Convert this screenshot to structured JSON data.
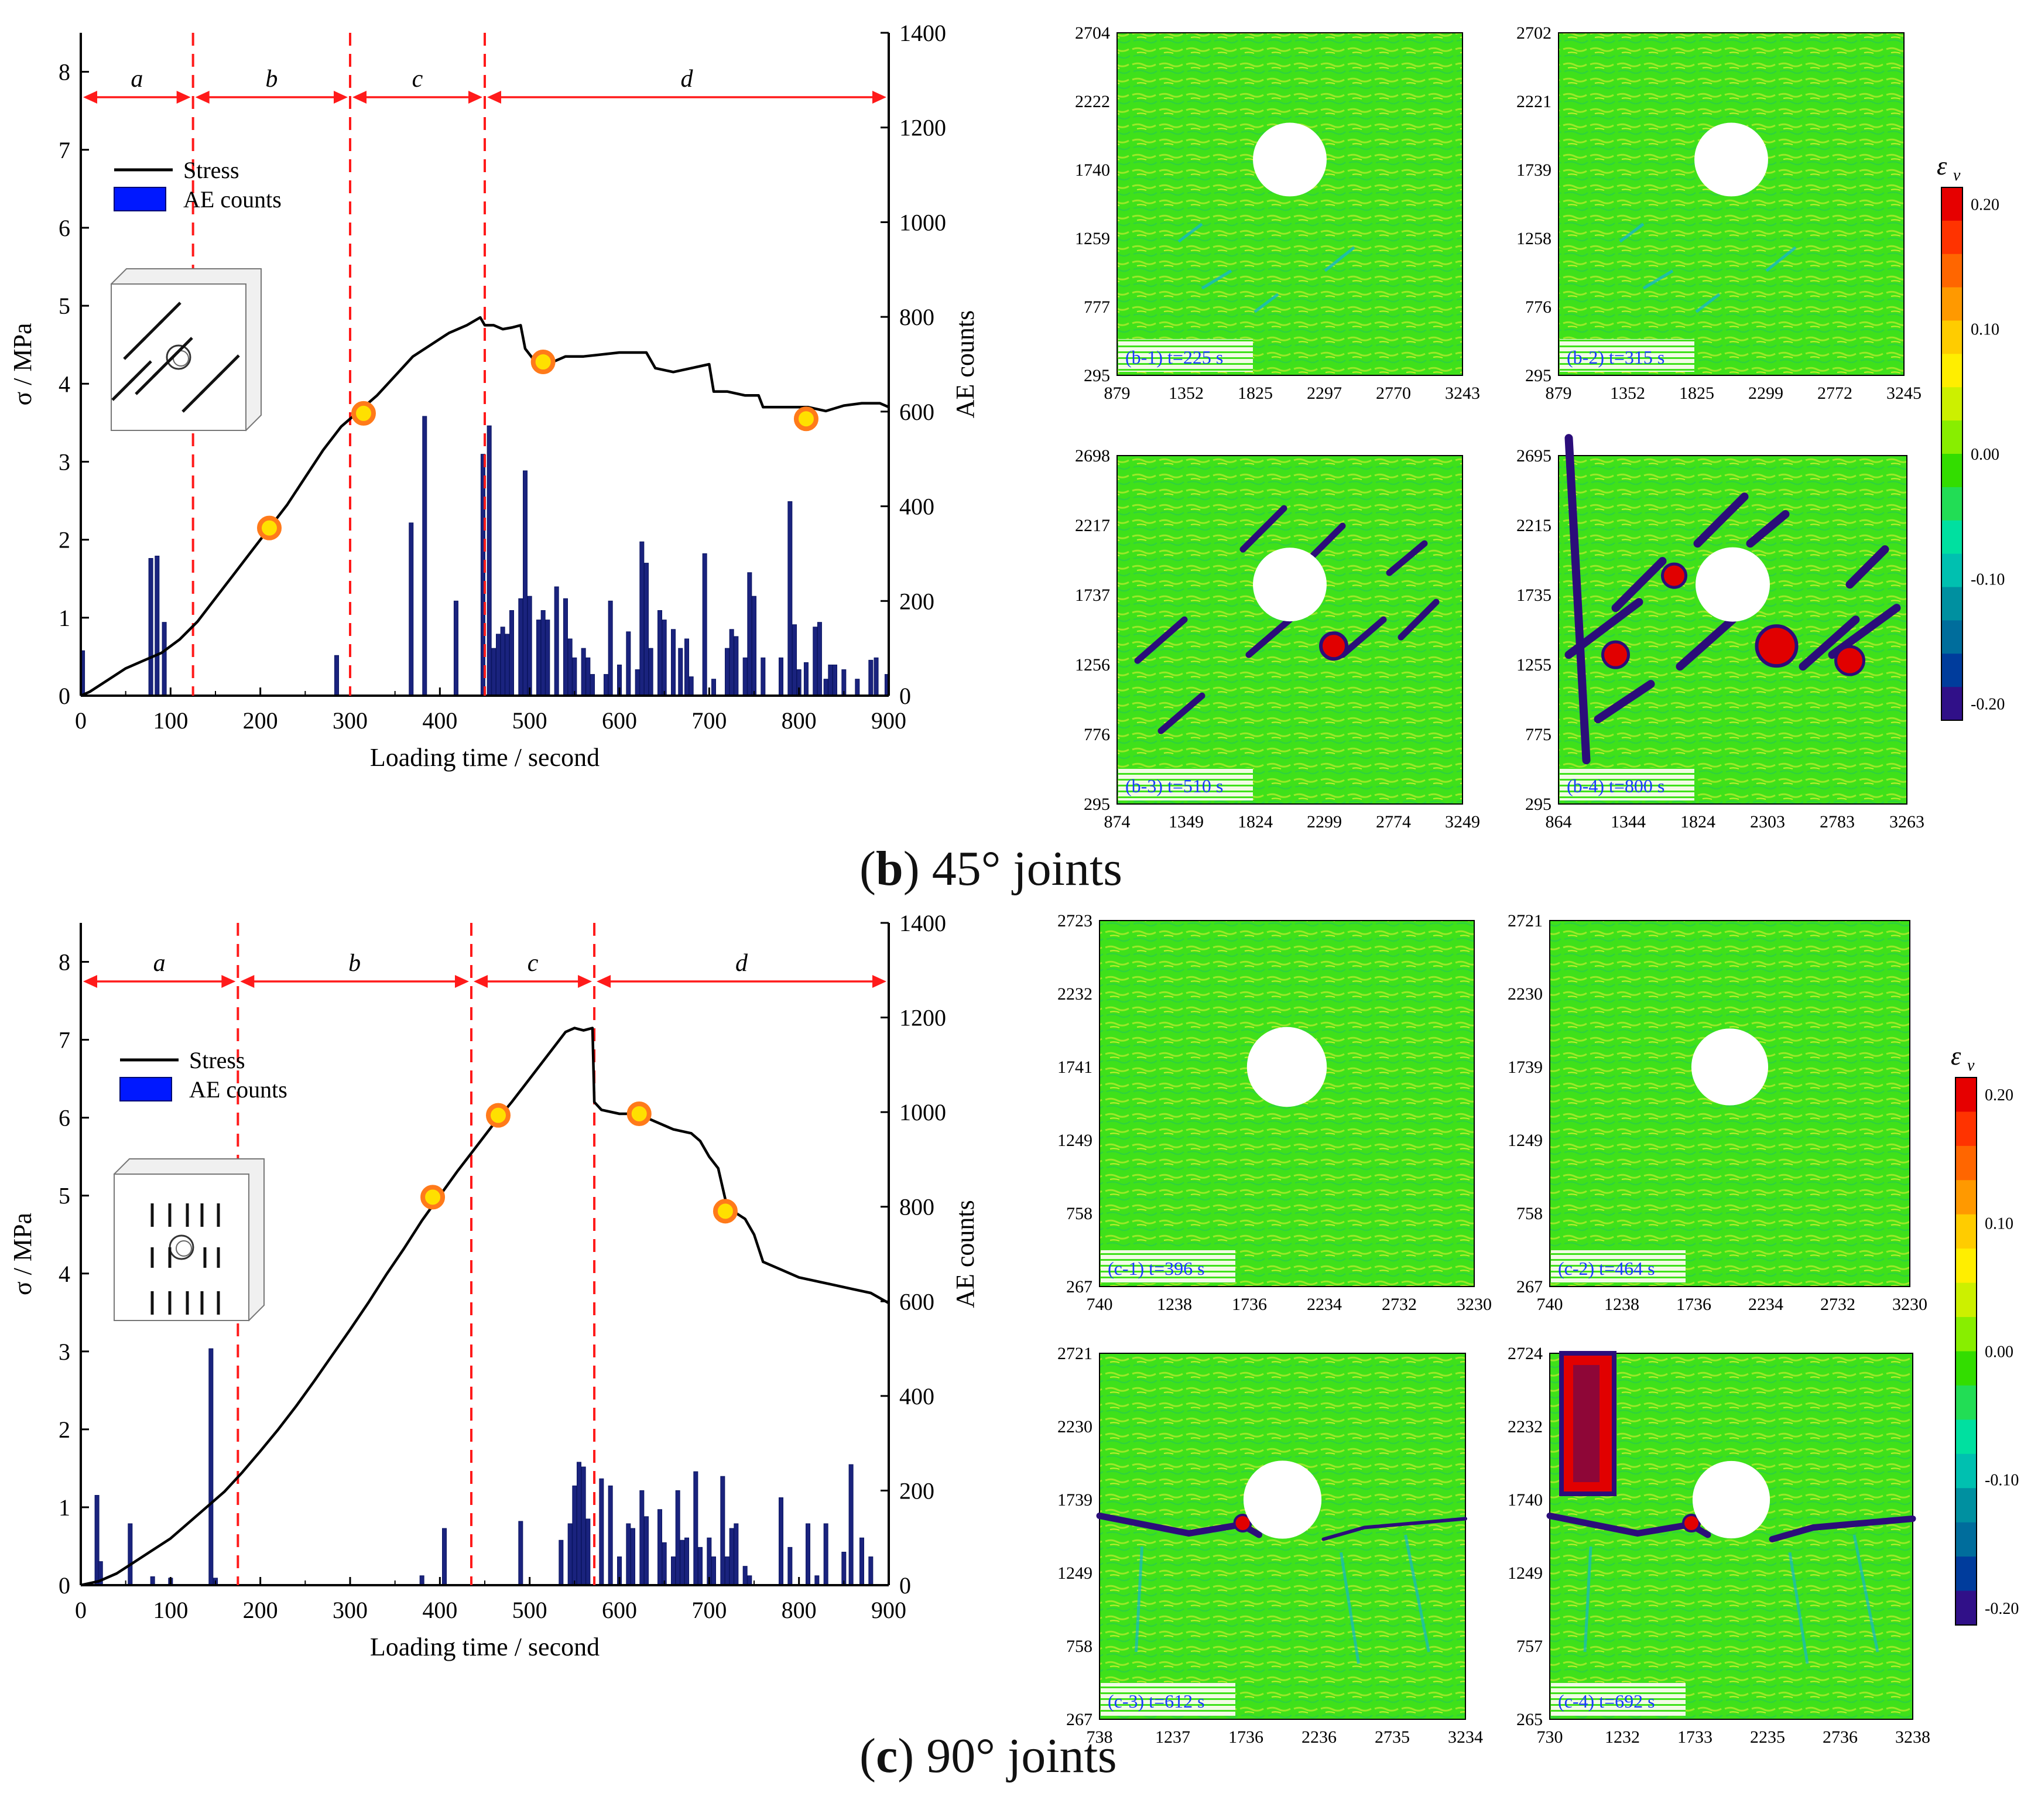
{
  "captions": [
    {
      "letter": "b",
      "text": "45° joints"
    },
    {
      "letter": "c",
      "text": "90° joints"
    }
  ],
  "strain_scale": {
    "label": "ε",
    "sub": "v",
    "ticks": [
      "0.20",
      "0.10",
      "0.00",
      "-0.10",
      "-0.20"
    ],
    "colors": [
      "#e60000",
      "#ff3300",
      "#ff6600",
      "#ff9900",
      "#ffcc00",
      "#ffee00",
      "#ccf000",
      "#88ee00",
      "#33dd00",
      "#22dd55",
      "#00e0a0",
      "#00c0b0",
      "#0090a0",
      "#006d9c",
      "#003c9c",
      "#301088"
    ]
  },
  "chart_data": [
    {
      "id": "b",
      "type": "bar+line",
      "title": "(b) 45° joints",
      "xlabel": "Loading time / second",
      "ylabel_left": "σ / MPa",
      "ylabel_right": "AE counts",
      "xlim": [
        0,
        900
      ],
      "ylim_left": [
        0,
        8.5
      ],
      "ylim_right": [
        0,
        1400
      ],
      "xticks": [
        0,
        100,
        200,
        300,
        400,
        500,
        600,
        700,
        800,
        900
      ],
      "yticks_left": [
        0,
        1,
        2,
        3,
        4,
        5,
        6,
        7,
        8
      ],
      "yticks_right": [
        0,
        200,
        400,
        600,
        800,
        1000,
        1200,
        1400
      ],
      "legend": [
        "Stress",
        "AE counts"
      ],
      "stages": [
        {
          "label": "a",
          "from": 0,
          "to": 125
        },
        {
          "label": "b",
          "from": 125,
          "to": 300
        },
        {
          "label": "c",
          "from": 300,
          "to": 450
        },
        {
          "label": "d",
          "from": 450,
          "to": 900
        }
      ],
      "stage_boundaries": [
        125,
        300,
        450
      ],
      "stress": {
        "name": "Stress",
        "points": [
          [
            0,
            0
          ],
          [
            10,
            0.05
          ],
          [
            30,
            0.2
          ],
          [
            50,
            0.35
          ],
          [
            70,
            0.45
          ],
          [
            90,
            0.55
          ],
          [
            110,
            0.72
          ],
          [
            130,
            0.95
          ],
          [
            150,
            1.25
          ],
          [
            170,
            1.55
          ],
          [
            190,
            1.85
          ],
          [
            210,
            2.15
          ],
          [
            230,
            2.45
          ],
          [
            250,
            2.8
          ],
          [
            270,
            3.15
          ],
          [
            290,
            3.45
          ],
          [
            310,
            3.65
          ],
          [
            330,
            3.85
          ],
          [
            350,
            4.1
          ],
          [
            370,
            4.35
          ],
          [
            390,
            4.5
          ],
          [
            410,
            4.65
          ],
          [
            430,
            4.75
          ],
          [
            445,
            4.85
          ],
          [
            450,
            4.75
          ],
          [
            460,
            4.75
          ],
          [
            470,
            4.7
          ],
          [
            480,
            4.72
          ],
          [
            490,
            4.75
          ],
          [
            495,
            4.45
          ],
          [
            505,
            4.3
          ],
          [
            520,
            4.25
          ],
          [
            540,
            4.35
          ],
          [
            560,
            4.35
          ],
          [
            600,
            4.4
          ],
          [
            630,
            4.4
          ],
          [
            640,
            4.2
          ],
          [
            660,
            4.15
          ],
          [
            680,
            4.2
          ],
          [
            700,
            4.25
          ],
          [
            705,
            3.9
          ],
          [
            720,
            3.9
          ],
          [
            740,
            3.85
          ],
          [
            755,
            3.85
          ],
          [
            760,
            3.7
          ],
          [
            790,
            3.7
          ],
          [
            810,
            3.7
          ],
          [
            830,
            3.65
          ],
          [
            850,
            3.72
          ],
          [
            870,
            3.75
          ],
          [
            890,
            3.75
          ],
          [
            900,
            3.7
          ]
        ]
      },
      "markers": [
        [
          210,
          2.15
        ],
        [
          315,
          3.62
        ],
        [
          515,
          4.28
        ],
        [
          808,
          3.55
        ]
      ],
      "ae_counts": {
        "name": "AE counts",
        "bars": [
          [
            2,
            95
          ],
          [
            78,
            290
          ],
          [
            85,
            295
          ],
          [
            93,
            155
          ],
          [
            285,
            85
          ],
          [
            368,
            365
          ],
          [
            383,
            590
          ],
          [
            418,
            200
          ],
          [
            448,
            510
          ],
          [
            455,
            570
          ],
          [
            460,
            100
          ],
          [
            465,
            130
          ],
          [
            470,
            145
          ],
          [
            475,
            130
          ],
          [
            480,
            180
          ],
          [
            490,
            205
          ],
          [
            495,
            475
          ],
          [
            500,
            210
          ],
          [
            510,
            160
          ],
          [
            515,
            180
          ],
          [
            520,
            160
          ],
          [
            530,
            230
          ],
          [
            540,
            205
          ],
          [
            545,
            120
          ],
          [
            550,
            80
          ],
          [
            560,
            100
          ],
          [
            565,
            80
          ],
          [
            570,
            45
          ],
          [
            585,
            45
          ],
          [
            590,
            200
          ],
          [
            600,
            65
          ],
          [
            610,
            135
          ],
          [
            620,
            55
          ],
          [
            625,
            325
          ],
          [
            630,
            280
          ],
          [
            635,
            100
          ],
          [
            645,
            180
          ],
          [
            650,
            160
          ],
          [
            660,
            140
          ],
          [
            668,
            100
          ],
          [
            675,
            120
          ],
          [
            680,
            40
          ],
          [
            695,
            300
          ],
          [
            705,
            35
          ],
          [
            720,
            100
          ],
          [
            725,
            140
          ],
          [
            730,
            125
          ],
          [
            740,
            80
          ],
          [
            745,
            260
          ],
          [
            750,
            210
          ],
          [
            760,
            80
          ],
          [
            780,
            80
          ],
          [
            790,
            410
          ],
          [
            795,
            150
          ],
          [
            800,
            55
          ],
          [
            808,
            70
          ],
          [
            818,
            145
          ],
          [
            823,
            155
          ],
          [
            830,
            35
          ],
          [
            835,
            65
          ],
          [
            840,
            65
          ],
          [
            850,
            55
          ],
          [
            865,
            35
          ],
          [
            880,
            75
          ],
          [
            886,
            80
          ],
          [
            898,
            45
          ]
        ]
      }
    },
    {
      "id": "c",
      "type": "bar+line",
      "title": "(c) 90° joints",
      "xlabel": "Loading time / second",
      "ylabel_left": "σ / MPa",
      "ylabel_right": "AE counts",
      "xlim": [
        0,
        900
      ],
      "ylim_left": [
        0,
        8.5
      ],
      "ylim_right": [
        0,
        1400
      ],
      "xticks": [
        0,
        100,
        200,
        300,
        400,
        500,
        600,
        700,
        800,
        900
      ],
      "yticks_left": [
        0,
        1,
        2,
        3,
        4,
        5,
        6,
        7,
        8
      ],
      "yticks_right": [
        0,
        200,
        400,
        600,
        800,
        1000,
        1200,
        1400
      ],
      "legend": [
        "Stress",
        "AE counts"
      ],
      "stages": [
        {
          "label": "a",
          "from": 0,
          "to": 175
        },
        {
          "label": "b",
          "from": 175,
          "to": 435
        },
        {
          "label": "c",
          "from": 435,
          "to": 572
        },
        {
          "label": "d",
          "from": 572,
          "to": 900
        }
      ],
      "stage_boundaries": [
        175,
        435,
        572
      ],
      "stress": {
        "name": "Stress",
        "points": [
          [
            0,
            0
          ],
          [
            20,
            0.05
          ],
          [
            40,
            0.15
          ],
          [
            60,
            0.3
          ],
          [
            80,
            0.45
          ],
          [
            100,
            0.6
          ],
          [
            120,
            0.8
          ],
          [
            140,
            1.0
          ],
          [
            160,
            1.2
          ],
          [
            180,
            1.45
          ],
          [
            200,
            1.72
          ],
          [
            220,
            2.0
          ],
          [
            240,
            2.3
          ],
          [
            260,
            2.62
          ],
          [
            280,
            2.95
          ],
          [
            300,
            3.28
          ],
          [
            320,
            3.62
          ],
          [
            340,
            3.98
          ],
          [
            360,
            4.32
          ],
          [
            380,
            4.68
          ],
          [
            400,
            5.0
          ],
          [
            420,
            5.32
          ],
          [
            440,
            5.62
          ],
          [
            460,
            5.92
          ],
          [
            480,
            6.2
          ],
          [
            500,
            6.5
          ],
          [
            520,
            6.8
          ],
          [
            540,
            7.1
          ],
          [
            550,
            7.15
          ],
          [
            560,
            7.12
          ],
          [
            570,
            7.15
          ],
          [
            572,
            6.2
          ],
          [
            580,
            6.1
          ],
          [
            600,
            6.05
          ],
          [
            620,
            6.05
          ],
          [
            640,
            5.95
          ],
          [
            660,
            5.85
          ],
          [
            680,
            5.8
          ],
          [
            690,
            5.7
          ],
          [
            700,
            5.5
          ],
          [
            710,
            5.35
          ],
          [
            720,
            4.85
          ],
          [
            740,
            4.7
          ],
          [
            750,
            4.5
          ],
          [
            760,
            4.15
          ],
          [
            780,
            4.05
          ],
          [
            800,
            3.95
          ],
          [
            820,
            3.9
          ],
          [
            840,
            3.85
          ],
          [
            860,
            3.8
          ],
          [
            880,
            3.75
          ],
          [
            900,
            3.62
          ]
        ]
      },
      "markers": [
        [
          392,
          4.98
        ],
        [
          465,
          6.03
        ],
        [
          622,
          6.05
        ],
        [
          718,
          4.8
        ]
      ],
      "ae_counts": {
        "name": "AE counts",
        "bars": [
          [
            18,
            190
          ],
          [
            22,
            50
          ],
          [
            55,
            130
          ],
          [
            80,
            18
          ],
          [
            100,
            15
          ],
          [
            145,
            500
          ],
          [
            150,
            15
          ],
          [
            380,
            20
          ],
          [
            405,
            120
          ],
          [
            490,
            135
          ],
          [
            535,
            95
          ],
          [
            545,
            130
          ],
          [
            550,
            210
          ],
          [
            555,
            260
          ],
          [
            560,
            250
          ],
          [
            565,
            140
          ],
          [
            580,
            225
          ],
          [
            590,
            210
          ],
          [
            600,
            60
          ],
          [
            610,
            130
          ],
          [
            615,
            120
          ],
          [
            625,
            200
          ],
          [
            630,
            145
          ],
          [
            645,
            160
          ],
          [
            650,
            90
          ],
          [
            660,
            60
          ],
          [
            665,
            200
          ],
          [
            670,
            95
          ],
          [
            675,
            100
          ],
          [
            685,
            240
          ],
          [
            690,
            80
          ],
          [
            700,
            100
          ],
          [
            705,
            60
          ],
          [
            715,
            230
          ],
          [
            720,
            60
          ],
          [
            725,
            120
          ],
          [
            730,
            130
          ],
          [
            740,
            40
          ],
          [
            745,
            20
          ],
          [
            780,
            185
          ],
          [
            790,
            80
          ],
          [
            810,
            130
          ],
          [
            820,
            20
          ],
          [
            830,
            130
          ],
          [
            850,
            70
          ],
          [
            858,
            255
          ],
          [
            870,
            100
          ],
          [
            880,
            60
          ]
        ]
      }
    }
  ],
  "panels": [
    {
      "id": "b-1",
      "label": "(b-1) t=225 s",
      "yticks": [
        "2704",
        "2222",
        "1740",
        "1259",
        "777",
        "295"
      ],
      "xticks": [
        "879",
        "1352",
        "1825",
        "2297",
        "2770",
        "3243"
      ],
      "stage": 0
    },
    {
      "id": "b-2",
      "label": "(b-2) t=315 s",
      "yticks": [
        "2702",
        "2221",
        "1739",
        "1258",
        "776",
        "295"
      ],
      "xticks": [
        "879",
        "1352",
        "1825",
        "2299",
        "2772",
        "3245"
      ],
      "stage": 0
    },
    {
      "id": "b-3",
      "label": "(b-3) t=510 s",
      "yticks": [
        "2698",
        "2217",
        "1737",
        "1256",
        "776",
        "295"
      ],
      "xticks": [
        "874",
        "1349",
        "1824",
        "2299",
        "2774",
        "3249"
      ],
      "stage": 1
    },
    {
      "id": "b-4",
      "label": "(b-4) t=800 s",
      "yticks": [
        "2695",
        "2215",
        "1735",
        "1255",
        "775",
        "295"
      ],
      "xticks": [
        "864",
        "1344",
        "1824",
        "2303",
        "2783",
        "3263"
      ],
      "stage": 2
    },
    {
      "id": "c-1",
      "label": "(c-1) t=396 s",
      "yticks": [
        "2723",
        "2232",
        "1741",
        "1249",
        "758",
        "267"
      ],
      "xticks": [
        "740",
        "1238",
        "1736",
        "2234",
        "2732",
        "3230"
      ],
      "stage": 0
    },
    {
      "id": "c-2",
      "label": "(c-2) t=464 s",
      "yticks": [
        "2721",
        "2230",
        "1739",
        "1249",
        "758",
        "267"
      ],
      "xticks": [
        "740",
        "1238",
        "1736",
        "2234",
        "2732",
        "3230"
      ],
      "stage": 0
    },
    {
      "id": "c-3",
      "label": "(c-3) t=612 s",
      "yticks": [
        "2721",
        "2230",
        "1739",
        "1249",
        "758",
        "267"
      ],
      "xticks": [
        "738",
        "1237",
        "1736",
        "2236",
        "2735",
        "3234"
      ],
      "stage": 1
    },
    {
      "id": "c-4",
      "label": "(c-4) t=692 s",
      "yticks": [
        "2724",
        "2232",
        "1740",
        "1249",
        "757",
        "265"
      ],
      "xticks": [
        "730",
        "1232",
        "1733",
        "2235",
        "2736",
        "3238"
      ],
      "stage": 2
    }
  ]
}
